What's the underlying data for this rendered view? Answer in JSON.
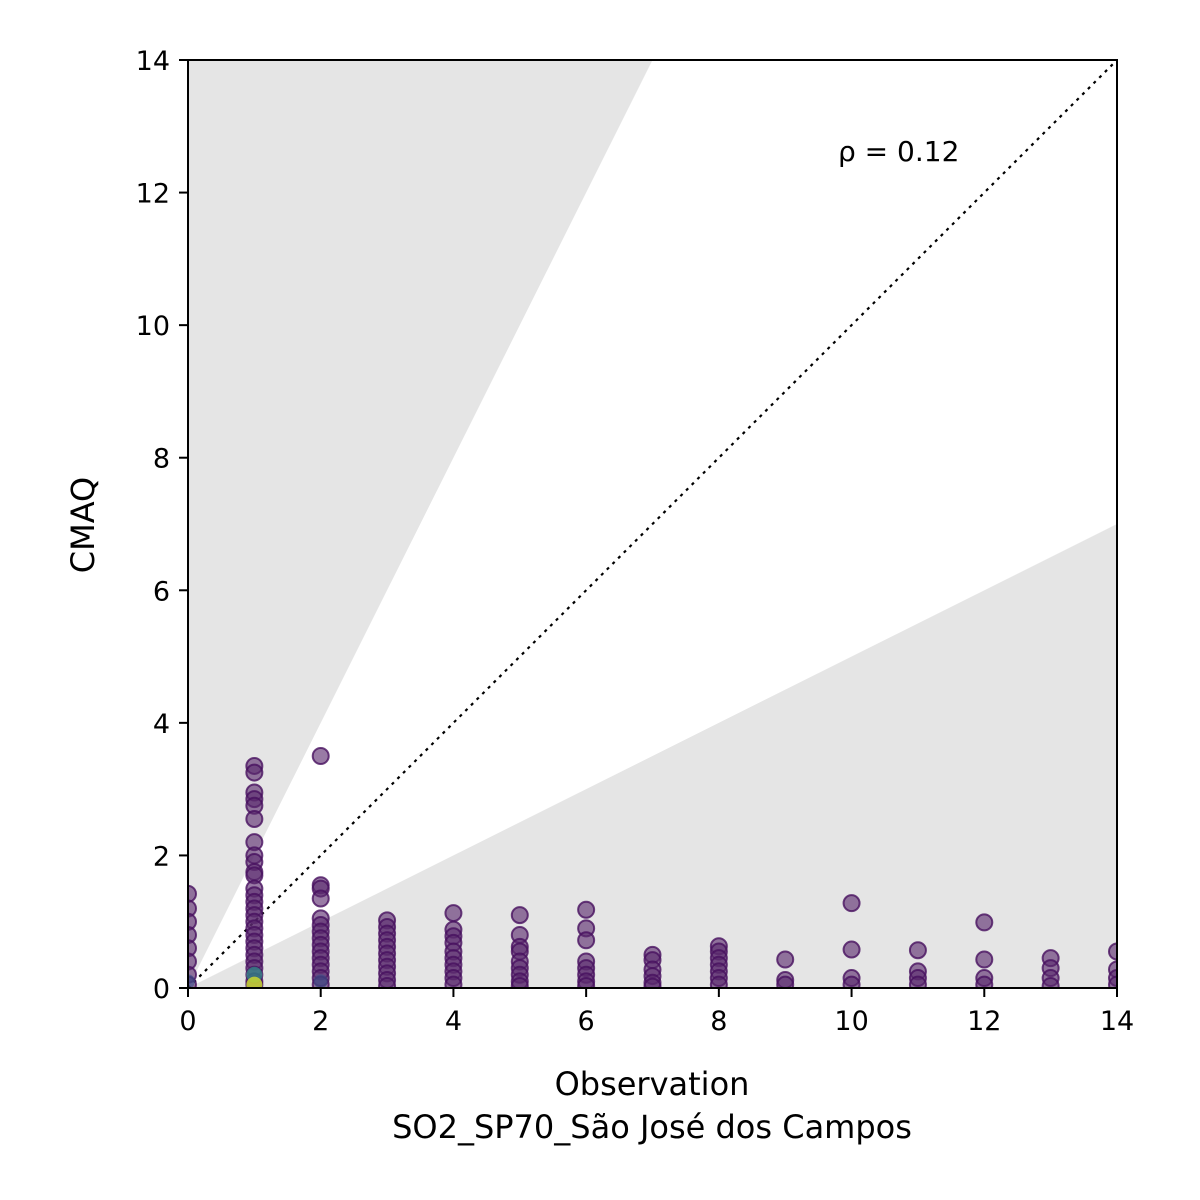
{
  "chart_data": {
    "type": "scatter",
    "xlabel": "Observation",
    "xlabel_line2": "SO2_SP70_São José dos Campos",
    "ylabel": "CMAQ",
    "annotation": "ρ = 0.12",
    "xlim": [
      0,
      14
    ],
    "ylim": [
      0,
      14
    ],
    "xticks": [
      "0",
      "2",
      "4",
      "6",
      "8",
      "10",
      "12",
      "14"
    ],
    "yticks": [
      "0",
      "2",
      "4",
      "6",
      "8",
      "10",
      "12",
      "14"
    ],
    "reference_line": "1:1 dotted",
    "shaded_band": "outside factor-of-2 region",
    "colormap": "viridis (point density)",
    "points": [
      {
        "x": 0,
        "y": 1.42
      },
      {
        "x": 0,
        "y": 1.2
      },
      {
        "x": 0,
        "y": 1.0
      },
      {
        "x": 0,
        "y": 0.8
      },
      {
        "x": 0,
        "y": 0.6
      },
      {
        "x": 0,
        "y": 0.4
      },
      {
        "x": 0,
        "y": 0.2
      },
      {
        "x": 0,
        "y": 0.05
      },
      {
        "x": 1,
        "y": 3.35
      },
      {
        "x": 1,
        "y": 3.25
      },
      {
        "x": 1,
        "y": 2.95
      },
      {
        "x": 1,
        "y": 2.85
      },
      {
        "x": 1,
        "y": 2.75
      },
      {
        "x": 1,
        "y": 2.55
      },
      {
        "x": 1,
        "y": 2.2
      },
      {
        "x": 1,
        "y": 2.0
      },
      {
        "x": 1,
        "y": 1.9
      },
      {
        "x": 1,
        "y": 1.75
      },
      {
        "x": 1,
        "y": 1.7
      },
      {
        "x": 1,
        "y": 1.5
      },
      {
        "x": 1,
        "y": 1.4
      },
      {
        "x": 1,
        "y": 1.3
      },
      {
        "x": 1,
        "y": 1.2
      },
      {
        "x": 1,
        "y": 1.1
      },
      {
        "x": 1,
        "y": 1.0
      },
      {
        "x": 1,
        "y": 0.9
      },
      {
        "x": 1,
        "y": 0.8
      },
      {
        "x": 1,
        "y": 0.7
      },
      {
        "x": 1,
        "y": 0.6
      },
      {
        "x": 1,
        "y": 0.5
      },
      {
        "x": 1,
        "y": 0.4
      },
      {
        "x": 1,
        "y": 0.3
      },
      {
        "x": 1,
        "y": 0.2
      },
      {
        "x": 1,
        "y": 0.1
      },
      {
        "x": 1,
        "y": 0.05
      },
      {
        "x": 2,
        "y": 3.5
      },
      {
        "x": 2,
        "y": 1.55
      },
      {
        "x": 2,
        "y": 1.5
      },
      {
        "x": 2,
        "y": 1.35
      },
      {
        "x": 2,
        "y": 1.05
      },
      {
        "x": 2,
        "y": 0.95
      },
      {
        "x": 2,
        "y": 0.85
      },
      {
        "x": 2,
        "y": 0.75
      },
      {
        "x": 2,
        "y": 0.65
      },
      {
        "x": 2,
        "y": 0.55
      },
      {
        "x": 2,
        "y": 0.45
      },
      {
        "x": 2,
        "y": 0.35
      },
      {
        "x": 2,
        "y": 0.25
      },
      {
        "x": 2,
        "y": 0.15
      },
      {
        "x": 2,
        "y": 0.05
      },
      {
        "x": 3,
        "y": 1.02
      },
      {
        "x": 3,
        "y": 0.92
      },
      {
        "x": 3,
        "y": 0.82
      },
      {
        "x": 3,
        "y": 0.72
      },
      {
        "x": 3,
        "y": 0.62
      },
      {
        "x": 3,
        "y": 0.52
      },
      {
        "x": 3,
        "y": 0.42
      },
      {
        "x": 3,
        "y": 0.32
      },
      {
        "x": 3,
        "y": 0.22
      },
      {
        "x": 3,
        "y": 0.12
      },
      {
        "x": 3,
        "y": 0.03
      },
      {
        "x": 4,
        "y": 1.13
      },
      {
        "x": 4,
        "y": 0.88
      },
      {
        "x": 4,
        "y": 0.78
      },
      {
        "x": 4,
        "y": 0.68
      },
      {
        "x": 4,
        "y": 0.55
      },
      {
        "x": 4,
        "y": 0.45
      },
      {
        "x": 4,
        "y": 0.35
      },
      {
        "x": 4,
        "y": 0.25
      },
      {
        "x": 4,
        "y": 0.15
      },
      {
        "x": 4,
        "y": 0.05
      },
      {
        "x": 5,
        "y": 1.1
      },
      {
        "x": 5,
        "y": 0.8
      },
      {
        "x": 5,
        "y": 0.62
      },
      {
        "x": 5,
        "y": 0.55
      },
      {
        "x": 5,
        "y": 0.4
      },
      {
        "x": 5,
        "y": 0.3
      },
      {
        "x": 5,
        "y": 0.2
      },
      {
        "x": 5,
        "y": 0.1
      },
      {
        "x": 5,
        "y": 0.03
      },
      {
        "x": 6,
        "y": 1.18
      },
      {
        "x": 6,
        "y": 0.9
      },
      {
        "x": 6,
        "y": 0.72
      },
      {
        "x": 6,
        "y": 0.4
      },
      {
        "x": 6,
        "y": 0.3
      },
      {
        "x": 6,
        "y": 0.2
      },
      {
        "x": 6,
        "y": 0.1
      },
      {
        "x": 6,
        "y": 0.03
      },
      {
        "x": 7,
        "y": 0.5
      },
      {
        "x": 7,
        "y": 0.42
      },
      {
        "x": 7,
        "y": 0.28
      },
      {
        "x": 7,
        "y": 0.18
      },
      {
        "x": 7,
        "y": 0.08
      },
      {
        "x": 7,
        "y": 0.02
      },
      {
        "x": 8,
        "y": 0.63
      },
      {
        "x": 8,
        "y": 0.55
      },
      {
        "x": 8,
        "y": 0.45
      },
      {
        "x": 8,
        "y": 0.35
      },
      {
        "x": 8,
        "y": 0.25
      },
      {
        "x": 8,
        "y": 0.15
      },
      {
        "x": 8,
        "y": 0.05
      },
      {
        "x": 9,
        "y": 0.43
      },
      {
        "x": 9,
        "y": 0.12
      },
      {
        "x": 9,
        "y": 0.05
      },
      {
        "x": 10,
        "y": 1.28
      },
      {
        "x": 10,
        "y": 0.58
      },
      {
        "x": 10,
        "y": 0.15
      },
      {
        "x": 10,
        "y": 0.05
      },
      {
        "x": 11,
        "y": 0.57
      },
      {
        "x": 11,
        "y": 0.25
      },
      {
        "x": 11,
        "y": 0.15
      },
      {
        "x": 11,
        "y": 0.05
      },
      {
        "x": 12,
        "y": 0.99
      },
      {
        "x": 12,
        "y": 0.43
      },
      {
        "x": 12,
        "y": 0.15
      },
      {
        "x": 12,
        "y": 0.05
      },
      {
        "x": 13,
        "y": 0.45
      },
      {
        "x": 13,
        "y": 0.3
      },
      {
        "x": 13,
        "y": 0.15
      },
      {
        "x": 13,
        "y": 0.03
      },
      {
        "x": 14,
        "y": 0.55
      },
      {
        "x": 14,
        "y": 0.28
      },
      {
        "x": 14,
        "y": 0.15
      },
      {
        "x": 14,
        "y": 0.05
      }
    ],
    "colors": {
      "point_fill": "#5b2a6e",
      "point_edge": "#47105f",
      "dense_green": "#2e8f8a",
      "dense_yellow": "#c8d630",
      "shade": "#e5e5e5"
    }
  }
}
